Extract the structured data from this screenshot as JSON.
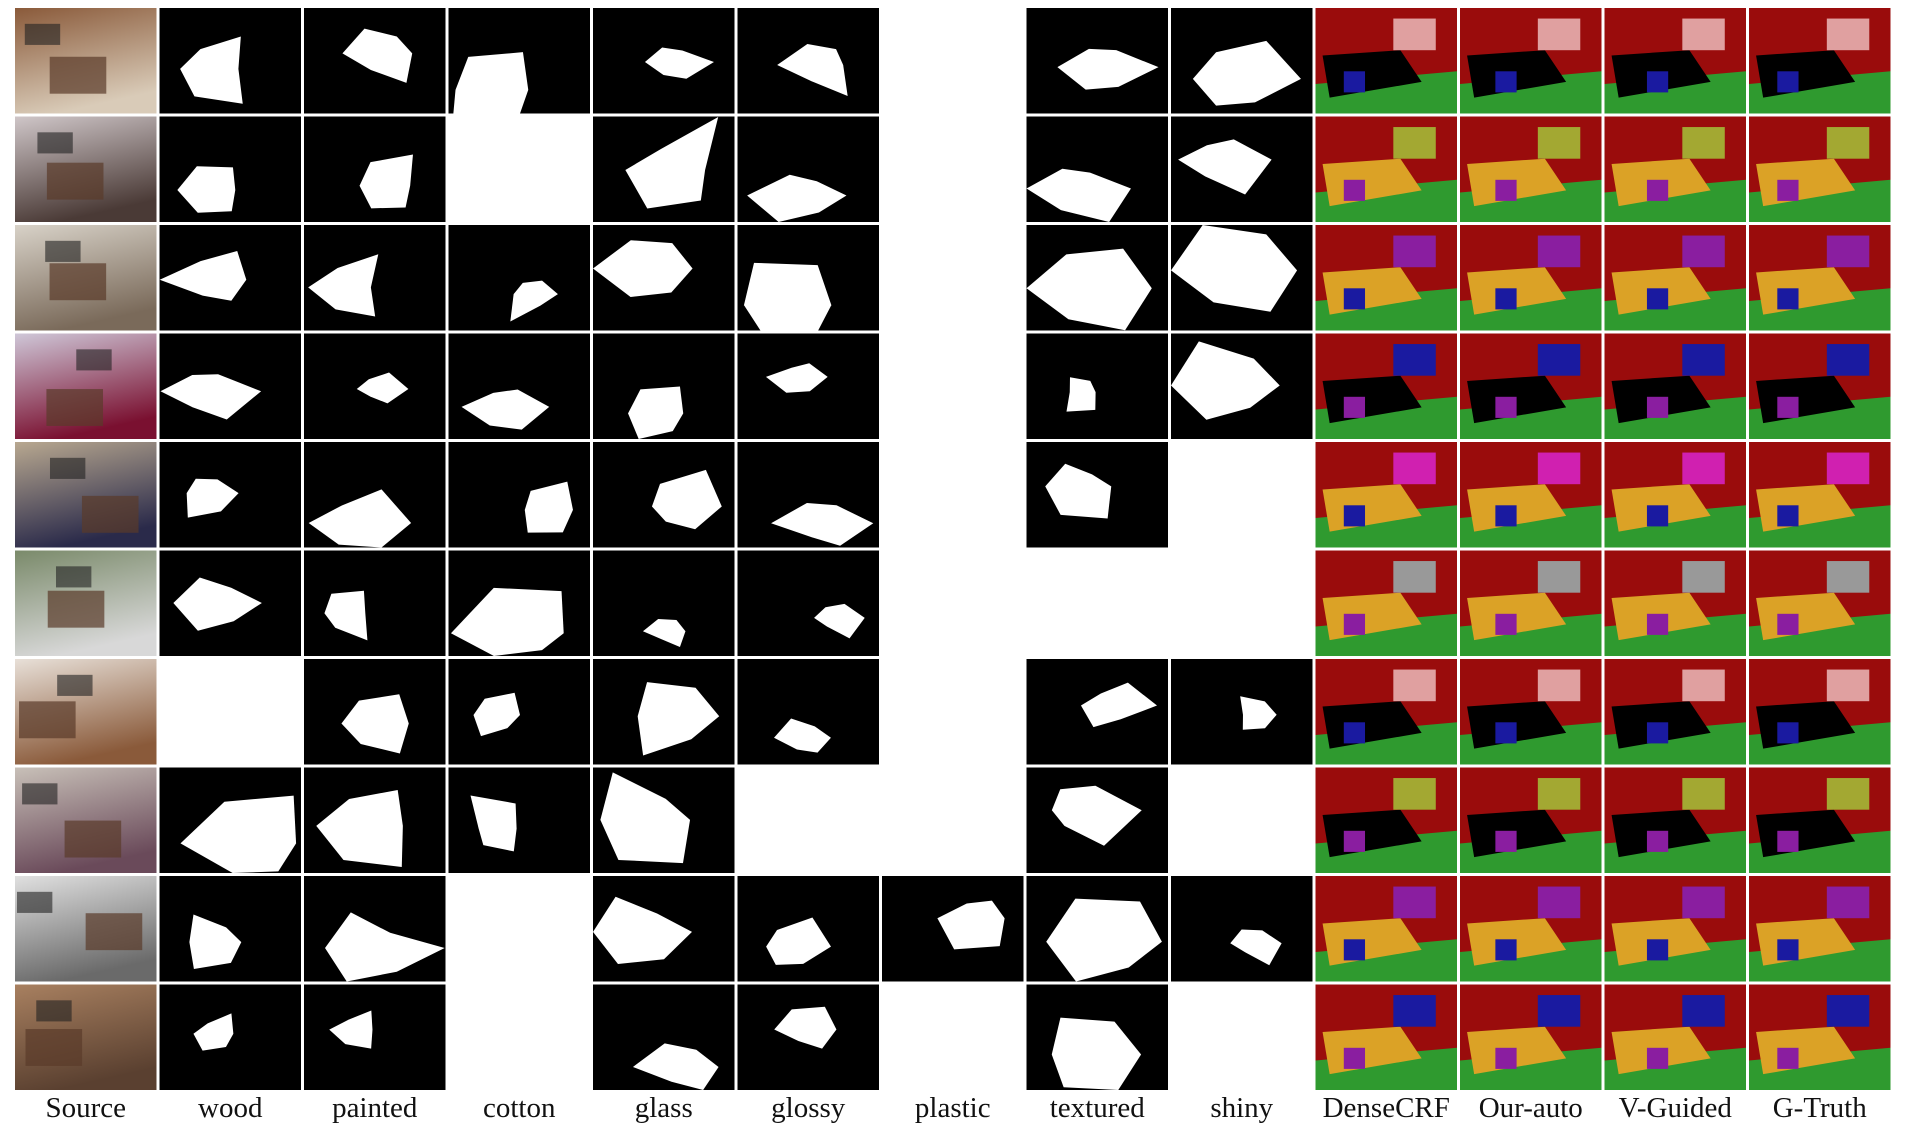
{
  "figure": {
    "columns": [
      "Source",
      "wood",
      "painted",
      "cotton",
      "glass",
      "glossy",
      "plastic",
      "textured",
      "shiny",
      "DenseCRF",
      "Our-auto",
      "V-Guided",
      "G-Truth"
    ]
  }
}
